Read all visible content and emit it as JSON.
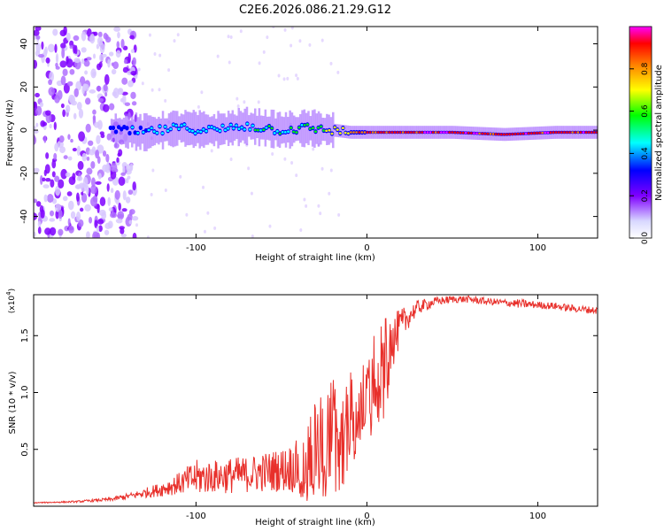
{
  "title": "C2E6.2026.086.21.29.G12",
  "colors": {
    "snr_line": "#e8302b",
    "colorbar": [
      "#d8d8ff",
      "#7f00ff",
      "#0000ff",
      "#00ffff",
      "#00ff00",
      "#ffff00",
      "#ff8000",
      "#ff0000",
      "#ff00ff"
    ]
  },
  "chart_data": [
    {
      "type": "heatmap",
      "xlabel": "Height of straight line (km)",
      "ylabel": "Frequency (Hz)",
      "xlim": [
        -195,
        135
      ],
      "ylim": [
        -50,
        48
      ],
      "xticks": [
        -100,
        0,
        100
      ],
      "xtick_labels": [
        "-100",
        "0",
        "100"
      ],
      "yticks": [
        -40,
        -20,
        0,
        20,
        40
      ],
      "ytick_labels": [
        "-40",
        "-20",
        "0",
        "20",
        "40"
      ],
      "colorbar": {
        "label": "Normalized spectral amplitude",
        "range": [
          0,
          1
        ],
        "ticks": [
          0.0,
          0.2,
          0.4,
          0.6,
          0.8
        ],
        "tick_labels": [
          "0.0",
          "0.2",
          "0.4",
          "0.6",
          "0.8"
        ]
      },
      "ridge": [
        {
          "x": -150,
          "freq": 0,
          "amp": 0.3
        },
        {
          "x": -130,
          "freq": -1,
          "amp": 0.35
        },
        {
          "x": -110,
          "freq": 1,
          "amp": 0.4
        },
        {
          "x": -90,
          "freq": 0,
          "amp": 0.38
        },
        {
          "x": -70,
          "freq": 2,
          "amp": 0.42
        },
        {
          "x": -50,
          "freq": 0,
          "amp": 0.45
        },
        {
          "x": -35,
          "freq": 1,
          "amp": 0.5
        },
        {
          "x": -20,
          "freq": 0,
          "amp": 0.6
        },
        {
          "x": -10,
          "freq": -1,
          "amp": 0.75
        },
        {
          "x": 0,
          "freq": -1,
          "amp": 0.85
        },
        {
          "x": 20,
          "freq": -1,
          "amp": 0.9
        },
        {
          "x": 50,
          "freq": -1,
          "amp": 0.95
        },
        {
          "x": 80,
          "freq": -2,
          "amp": 0.9
        },
        {
          "x": 110,
          "freq": -1,
          "amp": 0.92
        },
        {
          "x": 135,
          "freq": -1,
          "amp": 0.9
        }
      ],
      "noise_region": [
        -195,
        -135
      ]
    },
    {
      "type": "line",
      "xlabel": "Height of straight line (km)",
      "ylabel": "SNR (10 * v/v)",
      "scale_label": "(x10",
      "scale_exponent": "4",
      "scale_close": ")",
      "xlim": [
        -195,
        135
      ],
      "ylim": [
        0,
        1.86
      ],
      "xticks": [
        -100,
        0,
        100
      ],
      "xtick_labels": [
        "-100",
        "0",
        "100"
      ],
      "yticks": [
        0.5,
        1.0,
        1.5
      ],
      "ytick_labels": [
        "0.5",
        "1.0",
        "1.5"
      ],
      "series": [
        {
          "name": "SNR",
          "x": [
            -195,
            -170,
            -150,
            -135,
            -120,
            -110,
            -100,
            -90,
            -80,
            -70,
            -60,
            -50,
            -40,
            -35,
            -30,
            -25,
            -20,
            -15,
            -10,
            -5,
            0,
            5,
            10,
            15,
            20,
            25,
            30,
            40,
            50,
            60,
            70,
            80,
            90,
            100,
            110,
            120,
            135
          ],
          "y": [
            0.03,
            0.04,
            0.06,
            0.1,
            0.15,
            0.2,
            0.25,
            0.26,
            0.27,
            0.28,
            0.3,
            0.32,
            0.35,
            0.45,
            0.55,
            0.6,
            0.7,
            0.75,
            0.85,
            0.95,
            1.05,
            1.2,
            1.3,
            1.45,
            1.58,
            1.68,
            1.75,
            1.8,
            1.82,
            1.82,
            1.8,
            1.79,
            1.78,
            1.77,
            1.76,
            1.74,
            1.72
          ],
          "spread": [
            0.005,
            0.01,
            0.02,
            0.04,
            0.08,
            0.12,
            0.2,
            0.18,
            0.2,
            0.2,
            0.22,
            0.24,
            0.3,
            0.35,
            0.5,
            0.55,
            0.55,
            0.5,
            0.45,
            0.4,
            0.4,
            0.45,
            0.45,
            0.3,
            0.2,
            0.12,
            0.08,
            0.05,
            0.04,
            0.04,
            0.04,
            0.04,
            0.05,
            0.04,
            0.04,
            0.04,
            0.04
          ]
        }
      ]
    }
  ]
}
